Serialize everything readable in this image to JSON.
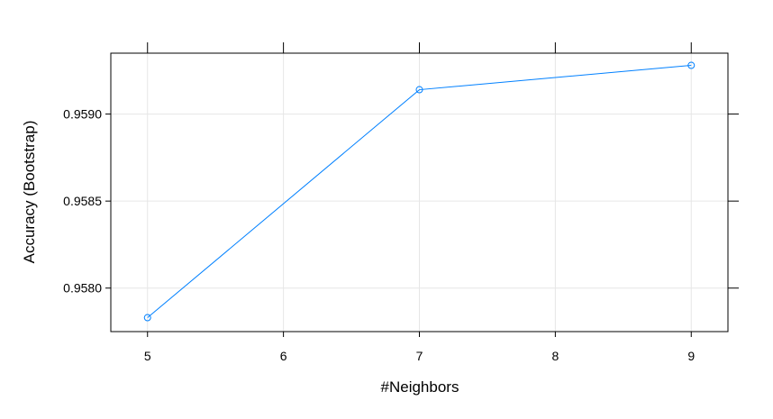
{
  "chart_data": {
    "type": "line",
    "title": "",
    "xlabel": "#Neighbors",
    "ylabel": "Accuracy (Bootstrap)",
    "x": [
      5,
      7,
      9
    ],
    "series": [
      {
        "values": [
          0.95783,
          0.95914,
          0.95928
        ]
      }
    ],
    "xlim": [
      4.73,
      9.27
    ],
    "ylim": [
      0.95775,
      0.95935
    ],
    "xticks": [
      5,
      6,
      7,
      8,
      9
    ],
    "xtick_labels": [
      "5",
      "6",
      "7",
      "8",
      "9"
    ],
    "yticks": [
      0.958,
      0.9585,
      0.959
    ],
    "ytick_labels": [
      "0.9580",
      "0.9585",
      "0.9590"
    ],
    "grid": true,
    "colors": {
      "series": "#0080ff",
      "grid": "#e6e6e6",
      "frame": "#000000"
    }
  }
}
